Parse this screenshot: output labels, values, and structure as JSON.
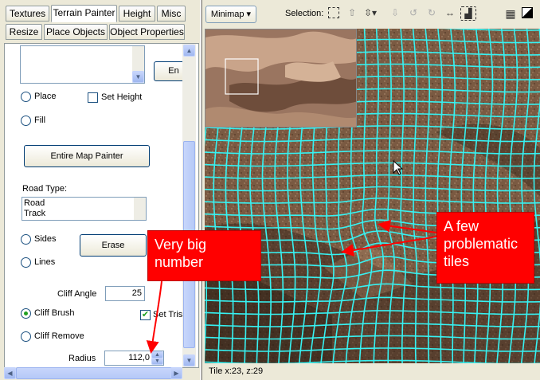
{
  "tabs_row1": [
    "Textures",
    "Terrain Painter",
    "Height",
    "Misc"
  ],
  "tabs_row2": [
    "Resize",
    "Place Objects",
    "Object Properties"
  ],
  "panel": {
    "en_button": "En",
    "place_label": "Place",
    "set_height_label": "Set Height",
    "fill_label": "Fill",
    "entire_map_button": "Entire Map Painter",
    "road_type_label": "Road Type:",
    "road_items": [
      "Road",
      "Track"
    ],
    "sides_label": "Sides",
    "erase_button": "Erase",
    "lines_label": "Lines",
    "cliff_angle_label": "Cliff Angle",
    "cliff_angle_value": "25",
    "cliff_brush_label": "Cliff Brush",
    "set_tris_label": "Set Tris",
    "cliff_remove_label": "Cliff Remove",
    "radius_label": "Radius",
    "radius_value": "112,0"
  },
  "toolbar": {
    "minimap_button": "Minimap ▾",
    "selection_label": "Selection:"
  },
  "status": {
    "text": "Tile x:23, z:29"
  },
  "callouts": {
    "big_number": "Very big number",
    "tiles": "A few problematic tiles"
  },
  "colors": {
    "grid": "#36f2f2",
    "callout": "#ff0000"
  }
}
